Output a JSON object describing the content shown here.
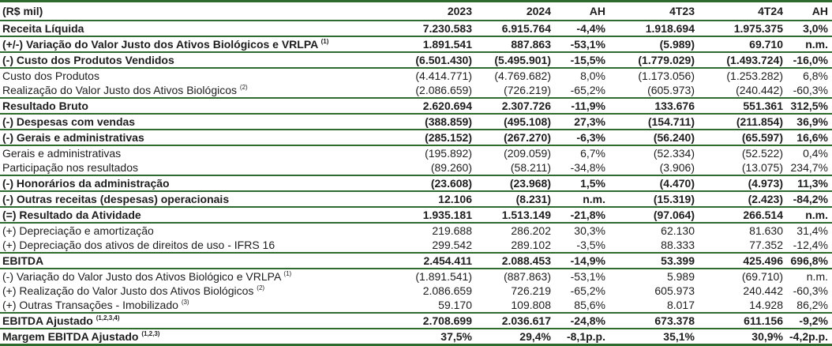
{
  "table": {
    "header": [
      "(R$ mil)",
      "2023",
      "2024",
      "AH",
      "4T23",
      "4T24",
      "AH"
    ],
    "rows": [
      {
        "label": "Receita Líquida",
        "bold": true,
        "cells": [
          "7.230.583",
          "6.915.764",
          "-4,4%",
          "1.918.694",
          "1.975.375",
          "3,0%"
        ]
      },
      {
        "label": "(+/-) Variação do Valor Justo dos Ativos Biológicos e VRLPA",
        "note": "(1)",
        "bold": true,
        "cells": [
          "1.891.541",
          "887.863",
          "-53,1%",
          "(5.989)",
          "69.710",
          "n.m."
        ]
      },
      {
        "label": "(-) Custo dos Produtos Vendidos",
        "bold": true,
        "cells": [
          "(6.501.430)",
          "(5.495.901)",
          "-15,5%",
          "(1.779.029)",
          "(1.493.724)",
          "-16,0%"
        ]
      },
      {
        "label": "Custo dos Produtos",
        "bold": false,
        "cells": [
          "(4.414.771)",
          "(4.769.682)",
          "8,0%",
          "(1.173.056)",
          "(1.253.282)",
          "6,8%"
        ]
      },
      {
        "label": "Realização do Valor Justo dos Ativos Biológicos",
        "note": "(2)",
        "bold": false,
        "cells": [
          "(2.086.659)",
          "(726.219)",
          "-65,2%",
          "(605.973)",
          "(240.442)",
          "-60,3%"
        ]
      },
      {
        "label": "Resultado Bruto",
        "bold": true,
        "cells": [
          "2.620.694",
          "2.307.726",
          "-11,9%",
          "133.676",
          "551.361",
          "312,5%"
        ]
      },
      {
        "label": "(-) Despesas com vendas",
        "bold": true,
        "cells": [
          "(388.859)",
          "(495.108)",
          "27,3%",
          "(154.711)",
          "(211.854)",
          "36,9%"
        ]
      },
      {
        "label": "(-) Gerais e administrativas",
        "bold": true,
        "cells": [
          "(285.152)",
          "(267.270)",
          "-6,3%",
          "(56.240)",
          "(65.597)",
          "16,6%"
        ]
      },
      {
        "label": "Gerais e administrativas",
        "bold": false,
        "cells": [
          "(195.892)",
          "(209.059)",
          "6,7%",
          "(52.334)",
          "(52.522)",
          "0,4%"
        ]
      },
      {
        "label": "Participação nos resultados",
        "bold": false,
        "cells": [
          "(89.260)",
          "(58.211)",
          "-34,8%",
          "(3.906)",
          "(13.075)",
          "234,7%"
        ]
      },
      {
        "label": "(-) Honorários da administração",
        "bold": true,
        "cells": [
          "(23.608)",
          "(23.968)",
          "1,5%",
          "(4.470)",
          "(4.973)",
          "11,3%"
        ]
      },
      {
        "label": "(-) Outras receitas (despesas) operacionais",
        "bold": true,
        "cells": [
          "12.106",
          "(8.231)",
          "n.m.",
          "(15.319)",
          "(2.423)",
          "-84,2%"
        ]
      },
      {
        "label": "(=) Resultado da Atividade",
        "bold": true,
        "cells": [
          "1.935.181",
          "1.513.149",
          "-21,8%",
          "(97.064)",
          "266.514",
          "n.m."
        ]
      },
      {
        "label": "(+) Depreciação e amortização",
        "bold": false,
        "cells": [
          "219.688",
          "286.202",
          "30,3%",
          "62.130",
          "81.630",
          "31,4%"
        ]
      },
      {
        "label": "(+) Depreciação dos ativos de direitos de uso - IFRS 16",
        "bold": false,
        "cells": [
          "299.542",
          "289.102",
          "-3,5%",
          "88.333",
          "77.352",
          "-12,4%"
        ]
      },
      {
        "label": "EBITDA",
        "bold": true,
        "cells": [
          "2.454.411",
          "2.088.453",
          "-14,9%",
          "53.399",
          "425.496",
          "696,8%"
        ]
      },
      {
        "label": "(-) Variação do Valor Justo dos Ativos Biológico e VRLPA",
        "note": "(1)",
        "bold": false,
        "cells": [
          "(1.891.541)",
          "(887.863)",
          "-53,1%",
          "5.989",
          "(69.710)",
          "n.m."
        ]
      },
      {
        "label": "(+) Realização do Valor Justo dos Ativos Biológicos",
        "note": "(2)",
        "bold": false,
        "cells": [
          "2.086.659",
          "726.219",
          "-65,2%",
          "605.973",
          "240.442",
          "-60,3%"
        ]
      },
      {
        "label": "(+) Outras Transações - Imobilizado",
        "note": "(3)",
        "bold": false,
        "cells": [
          "59.170",
          "109.808",
          "85,6%",
          "8.017",
          "14.928",
          "86,2%"
        ]
      },
      {
        "label": "EBITDA Ajustado",
        "note": "(1,2,3,4)",
        "bold": true,
        "cells": [
          "2.708.699",
          "2.036.617",
          "-24,8%",
          "673.378",
          "611.156",
          "-9,2%"
        ]
      },
      {
        "label": "Margem EBITDA Ajustado",
        "note": "(1,2,3)",
        "bold": true,
        "cells": [
          "37,5%",
          "29,4%",
          "-8,1p.p.",
          "35,1%",
          "30,9%",
          "-4,2p.p."
        ]
      }
    ]
  }
}
